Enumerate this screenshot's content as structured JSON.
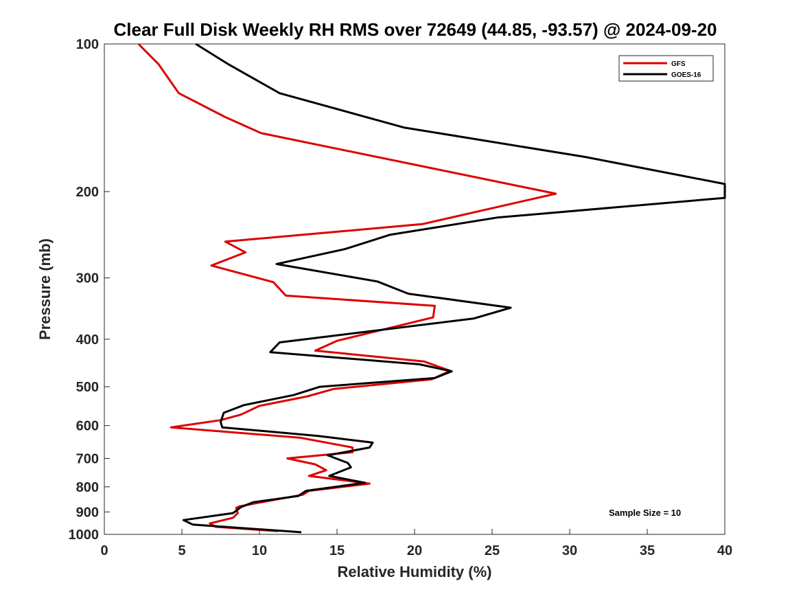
{
  "chart_data": {
    "type": "line",
    "title": "Clear Full Disk Weekly RH RMS over 72649 (44.85, -93.57) @ 2024-09-20",
    "xlabel": "Relative Humidity (%)",
    "ylabel": "Pressure (mb)",
    "xlim": [
      0,
      40
    ],
    "ylim": [
      100,
      1000
    ],
    "y_scale": "log",
    "y_reversed": true,
    "xticks": [
      "0",
      "5",
      "10",
      "15",
      "20",
      "25",
      "30",
      "35",
      "40"
    ],
    "yticks": [
      "100",
      "200",
      "300",
      "400",
      "500",
      "600",
      "700",
      "800",
      "900",
      "1000"
    ],
    "grid": false,
    "legend_position": "top-right",
    "annotation": "Sample Size = 10",
    "series": [
      {
        "name": "GFS",
        "color": "#dd0000",
        "x": [
          2.2,
          3.5,
          4.8,
          7.8,
          10.1,
          29.1,
          20.5,
          7.8,
          9.1,
          6.9,
          10.9,
          11.7,
          21.3,
          21.2,
          15.0,
          13.6,
          20.6,
          22.3,
          21.1,
          14.8,
          13.1,
          10.0,
          8.8,
          7.5,
          4.3,
          12.6,
          16.0,
          16.0,
          11.8,
          13.6,
          14.3,
          13.2,
          17.1,
          13.2,
          12.8,
          10.3,
          8.7,
          8.5,
          8.6,
          8.3,
          6.8,
          7.2,
          11.2
        ],
        "y": [
          100,
          110,
          126,
          141,
          152,
          202,
          233,
          253,
          266,
          283,
          306,
          326,
          342,
          361,
          403,
          422,
          444,
          464,
          483,
          505,
          523,
          547,
          570,
          585,
          605,
          635,
          665,
          680,
          700,
          720,
          740,
          760,
          788,
          815,
          830,
          858,
          877,
          883,
          905,
          925,
          950,
          965,
          985
        ]
      },
      {
        "name": "GOES-16",
        "color": "#000000",
        "x": [
          5.9,
          8.0,
          11.3,
          19.3,
          31.0,
          40.0,
          40.0,
          25.3,
          18.4,
          15.5,
          11.1,
          17.6,
          19.6,
          26.2,
          23.8,
          11.3,
          10.7,
          20.3,
          22.4,
          21.3,
          13.9,
          12.2,
          9.0,
          7.7,
          7.5,
          7.6,
          13.8,
          17.3,
          17.1,
          14.4,
          15.7,
          15.9,
          14.5,
          16.8,
          13.0,
          12.5,
          9.6,
          8.8,
          8.3,
          5.1,
          5.7,
          12.7
        ],
        "y": [
          100,
          110,
          126,
          148,
          170,
          193,
          206,
          226,
          245,
          262,
          281,
          305,
          323,
          345,
          363,
          406,
          425,
          450,
          465,
          480,
          500,
          520,
          545,
          565,
          590,
          605,
          630,
          650,
          665,
          690,
          715,
          730,
          760,
          785,
          815,
          835,
          860,
          880,
          905,
          935,
          955,
          990
        ]
      }
    ]
  }
}
